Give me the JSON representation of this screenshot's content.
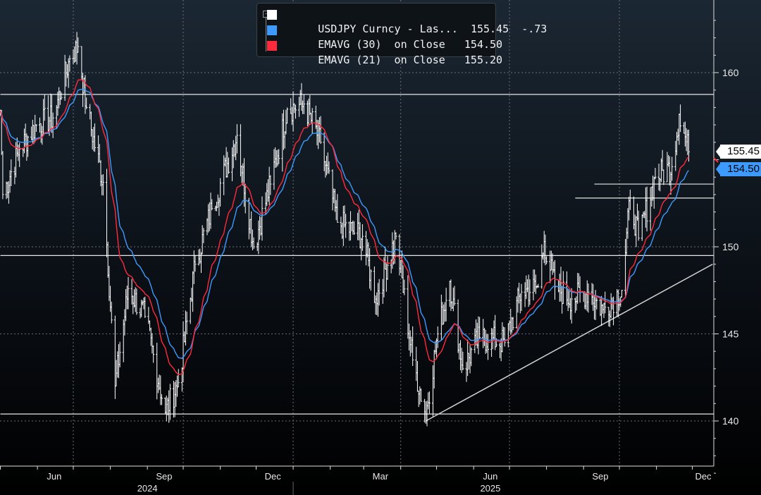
{
  "chart_data": {
    "type": "line",
    "subtype": "ohlc-bars-with-moving-averages",
    "title": "",
    "xlabel": "",
    "ylabel": "",
    "ylim": [
      136,
      163.5
    ],
    "xlim": [
      "2024-05-01",
      "2025-12-18"
    ],
    "y_ticks": [
      140,
      145,
      150,
      155,
      160
    ],
    "y_tick_labels_visible": [
      "160",
      "150",
      "145",
      "140"
    ],
    "x_tick_labels": [
      "Jun",
      "Sep",
      "Dec",
      "Mar",
      "Jun",
      "Sep",
      "Dec"
    ],
    "x_tick_label_dates": [
      "2024-06-15",
      "2024-09-15",
      "2024-12-15",
      "2025-03-15",
      "2025-06-15",
      "2025-09-15",
      "2025-12-12"
    ],
    "x_year_labels": [
      {
        "label": "2024",
        "date": "2024-09-01"
      },
      {
        "label": "2025",
        "date": "2025-06-15"
      }
    ],
    "grid": true,
    "legend_placement": "top-center",
    "colors": {
      "price": "#ffffff",
      "ema30": "#3d9bff",
      "ema21": "#ff2a3c",
      "levels": "#e6e6e6",
      "background_top": "#1b2733",
      "background_bottom": "#000000"
    },
    "legend": [
      {
        "label": "USDJPY Curncy - Las...",
        "value": "155.45",
        "change": "-.73",
        "color": "#ffffff"
      },
      {
        "label": "EMAVG (30)  on Close",
        "value": "154.50",
        "color": "#3d9bff"
      },
      {
        "label": "EMAVG (21)  on Close",
        "value": "155.20",
        "color": "#ff2a3c"
      }
    ],
    "last_price_labels": [
      {
        "value": "155.45",
        "color": "#ffffff"
      },
      {
        "value": "154.50",
        "color": "#3d9bff"
      }
    ],
    "series": [
      {
        "name": "USDJPY Curncy",
        "type": "ohlc",
        "points": [
          [
            "2024-05-01",
            157.8
          ],
          [
            "2024-05-03",
            153.0
          ],
          [
            "2024-05-17",
            155.6
          ],
          [
            "2024-05-31",
            157.0
          ],
          [
            "2024-06-14",
            157.4
          ],
          [
            "2024-06-28",
            160.8
          ],
          [
            "2024-07-05",
            161.5
          ],
          [
            "2024-07-12",
            158.0
          ],
          [
            "2024-07-26",
            153.7
          ],
          [
            "2024-08-05",
            142.0
          ],
          [
            "2024-08-16",
            147.6
          ],
          [
            "2024-08-30",
            146.0
          ],
          [
            "2024-09-16",
            140.5
          ],
          [
            "2024-09-27",
            142.2
          ],
          [
            "2024-10-11",
            149.0
          ],
          [
            "2024-10-25",
            152.2
          ],
          [
            "2024-11-15",
            156.4
          ],
          [
            "2024-11-29",
            150.0
          ],
          [
            "2024-12-13",
            153.6
          ],
          [
            "2024-12-27",
            157.9
          ],
          [
            "2025-01-10",
            158.2
          ],
          [
            "2025-01-24",
            156.0
          ],
          [
            "2025-02-07",
            151.4
          ],
          [
            "2025-02-28",
            150.6
          ],
          [
            "2025-03-11",
            147.0
          ],
          [
            "2025-03-28",
            150.6
          ],
          [
            "2025-04-11",
            143.5
          ],
          [
            "2025-04-22",
            140.4
          ],
          [
            "2025-05-02",
            145.0
          ],
          [
            "2025-05-12",
            148.0
          ],
          [
            "2025-05-23",
            143.0
          ],
          [
            "2025-06-06",
            144.8
          ],
          [
            "2025-06-27",
            144.5
          ],
          [
            "2025-07-11",
            147.4
          ],
          [
            "2025-07-25",
            147.7
          ],
          [
            "2025-07-30",
            150.3
          ],
          [
            "2025-08-08",
            147.7
          ],
          [
            "2025-08-22",
            147.0
          ],
          [
            "2025-09-05",
            147.4
          ],
          [
            "2025-09-17",
            146.4
          ],
          [
            "2025-10-03",
            147.5
          ],
          [
            "2025-10-10",
            152.8
          ],
          [
            "2025-10-17",
            150.5
          ],
          [
            "2025-10-31",
            154.0
          ],
          [
            "2025-11-14",
            154.6
          ],
          [
            "2025-11-20",
            157.6
          ],
          [
            "2025-11-28",
            155.45
          ]
        ]
      },
      {
        "name": "EMAVG (30) on Close",
        "type": "line",
        "period": 30,
        "last": 154.5
      },
      {
        "name": "EMAVG (21) on Close",
        "type": "line",
        "period": 21,
        "last": 155.2
      }
    ],
    "horizontal_levels": [
      {
        "value": 158.75,
        "from": "2024-05-01",
        "to": "2025-12-18"
      },
      {
        "value": 149.5,
        "from": "2024-05-01",
        "to": "2025-12-18"
      },
      {
        "value": 140.4,
        "from": "2024-05-01",
        "to": "2025-12-18"
      },
      {
        "value": 153.6,
        "from": "2025-09-10",
        "to": "2025-12-18"
      },
      {
        "value": 152.8,
        "from": "2025-08-25",
        "to": "2025-12-18"
      }
    ],
    "trendlines": [
      {
        "from": [
          "2025-04-22",
          140.0
        ],
        "to": [
          "2025-12-18",
          149.0
        ]
      }
    ]
  }
}
